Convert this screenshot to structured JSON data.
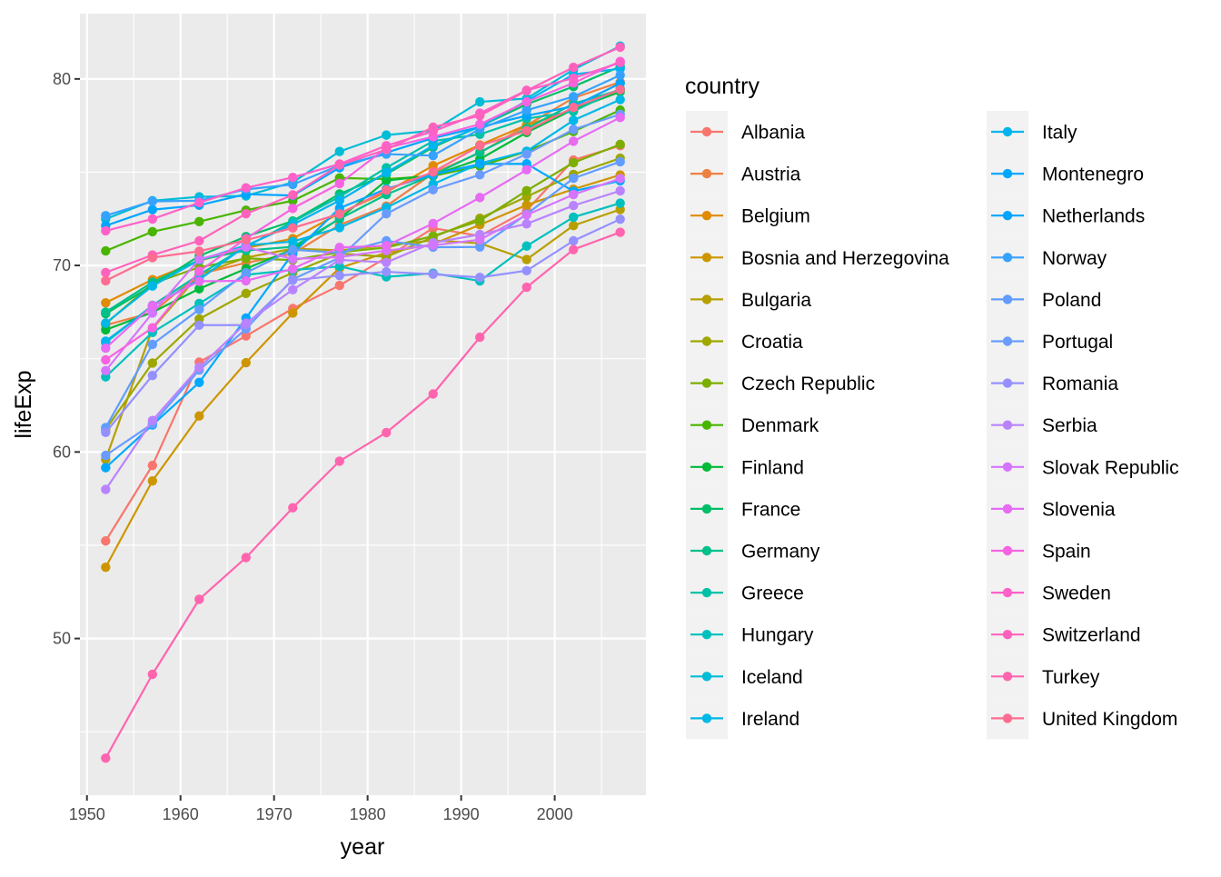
{
  "chart_data": {
    "type": "line",
    "xlabel": "year",
    "ylabel": "lifeExp",
    "xlim": [
      1949.25,
      2009.75
    ],
    "ylim": [
      41.6,
      83.5
    ],
    "x_ticks": [
      1950,
      1960,
      1970,
      1980,
      1990,
      2000
    ],
    "y_ticks": [
      50,
      60,
      70,
      80
    ],
    "grid": true,
    "legend_title": "country",
    "legend_position": "right",
    "x": [
      1952,
      1957,
      1962,
      1967,
      1972,
      1977,
      1982,
      1987,
      1992,
      1997,
      2002,
      2007
    ],
    "series": [
      {
        "name": "Albania",
        "color": "#F8766D",
        "values": [
          55.23,
          59.28,
          64.82,
          66.22,
          67.69,
          68.93,
          70.42,
          72.0,
          71.58,
          72.95,
          75.65,
          76.42
        ]
      },
      {
        "name": "Austria",
        "color": "#EE8043",
        "values": [
          66.8,
          67.48,
          69.54,
          70.14,
          70.63,
          72.17,
          73.18,
          74.94,
          76.04,
          77.51,
          78.98,
          79.83
        ]
      },
      {
        "name": "Belgium",
        "color": "#E08B00",
        "values": [
          68.0,
          69.24,
          70.25,
          70.94,
          71.44,
          72.8,
          73.93,
          75.35,
          76.46,
          77.53,
          78.32,
          79.44
        ]
      },
      {
        "name": "Bosnia and Herzegovina",
        "color": "#CD9600",
        "values": [
          53.82,
          58.45,
          61.93,
          64.79,
          67.45,
          69.86,
          70.69,
          71.14,
          72.18,
          73.24,
          74.09,
          74.85
        ]
      },
      {
        "name": "Bulgaria",
        "color": "#B79F00",
        "values": [
          59.6,
          66.61,
          69.51,
          70.42,
          70.9,
          70.81,
          71.08,
          71.34,
          71.19,
          70.32,
          72.14,
          73.0
        ]
      },
      {
        "name": "Croatia",
        "color": "#9DA700",
        "values": [
          61.21,
          64.77,
          67.13,
          68.5,
          69.61,
          70.64,
          70.46,
          71.52,
          72.53,
          73.68,
          74.88,
          75.75
        ]
      },
      {
        "name": "Czech Republic",
        "color": "#7CAE00",
        "values": [
          66.87,
          69.03,
          69.9,
          70.38,
          70.29,
          70.71,
          70.96,
          71.58,
          72.4,
          74.01,
          75.51,
          76.49
        ]
      },
      {
        "name": "Denmark",
        "color": "#49B500",
        "values": [
          70.78,
          71.81,
          72.35,
          72.96,
          73.47,
          74.69,
          74.63,
          74.8,
          75.33,
          76.11,
          77.18,
          78.33
        ]
      },
      {
        "name": "Finland",
        "color": "#00BA38",
        "values": [
          66.55,
          67.49,
          68.75,
          69.83,
          70.87,
          72.52,
          74.55,
          74.83,
          75.7,
          77.13,
          78.37,
          79.31
        ]
      },
      {
        "name": "France",
        "color": "#00BE67",
        "values": [
          67.41,
          68.93,
          70.51,
          71.55,
          72.38,
          73.83,
          74.89,
          76.34,
          77.46,
          78.64,
          79.59,
          80.66
        ]
      },
      {
        "name": "Germany",
        "color": "#00C08B",
        "values": [
          67.5,
          69.1,
          70.3,
          70.8,
          71.0,
          72.5,
          73.8,
          74.85,
          76.07,
          77.34,
          78.67,
          79.41
        ]
      },
      {
        "name": "Greece",
        "color": "#00C1A7",
        "values": [
          65.86,
          67.86,
          69.51,
          71.0,
          72.34,
          73.68,
          75.24,
          76.67,
          77.03,
          77.87,
          78.26,
          79.48
        ]
      },
      {
        "name": "Hungary",
        "color": "#00C0BE",
        "values": [
          64.03,
          66.41,
          67.96,
          69.5,
          69.76,
          69.95,
          69.39,
          69.58,
          69.17,
          71.04,
          72.59,
          73.34
        ]
      },
      {
        "name": "Iceland",
        "color": "#00BCD6",
        "values": [
          72.49,
          73.47,
          73.68,
          73.73,
          74.46,
          76.11,
          76.99,
          77.23,
          78.77,
          78.95,
          80.5,
          81.76
        ]
      },
      {
        "name": "Ireland",
        "color": "#00B8E7",
        "values": [
          66.91,
          68.9,
          70.29,
          71.08,
          71.28,
          72.03,
          73.1,
          74.36,
          75.47,
          76.12,
          77.78,
          78.89
        ]
      },
      {
        "name": "Italy",
        "color": "#00B4EF",
        "values": [
          65.94,
          67.81,
          69.24,
          71.06,
          72.19,
          73.48,
          74.98,
          76.42,
          77.44,
          78.82,
          80.24,
          80.55
        ]
      },
      {
        "name": "Montenegro",
        "color": "#00A9FF",
        "values": [
          59.16,
          61.45,
          63.73,
          67.18,
          70.64,
          73.07,
          74.1,
          74.87,
          75.44,
          75.45,
          73.98,
          74.54
        ]
      },
      {
        "name": "Netherlands",
        "color": "#00A5FF",
        "values": [
          72.13,
          72.99,
          73.23,
          73.82,
          73.75,
          75.24,
          76.05,
          76.83,
          77.42,
          78.03,
          78.53,
          79.76
        ]
      },
      {
        "name": "Norway",
        "color": "#35A2FF",
        "values": [
          72.67,
          73.44,
          73.47,
          74.08,
          74.34,
          75.37,
          75.97,
          75.89,
          77.32,
          78.32,
          79.05,
          80.2
        ]
      },
      {
        "name": "Poland",
        "color": "#619CFF",
        "values": [
          61.31,
          65.77,
          67.64,
          69.61,
          70.85,
          70.67,
          71.32,
          70.98,
          70.99,
          72.75,
          74.67,
          75.56
        ]
      },
      {
        "name": "Portugal",
        "color": "#6A9CFF",
        "values": [
          59.82,
          61.51,
          64.39,
          66.6,
          69.26,
          70.41,
          72.77,
          74.06,
          74.86,
          75.97,
          77.29,
          78.1
        ]
      },
      {
        "name": "Romania",
        "color": "#9590FF",
        "values": [
          61.05,
          64.1,
          66.8,
          66.8,
          69.21,
          69.46,
          69.66,
          69.53,
          69.36,
          69.72,
          71.32,
          72.48
        ]
      },
      {
        "name": "Serbia",
        "color": "#B983FF",
        "values": [
          57.99,
          61.69,
          64.53,
          66.91,
          68.7,
          70.3,
          70.16,
          71.22,
          71.66,
          72.23,
          73.21,
          74.0
        ]
      },
      {
        "name": "Slovak Republic",
        "color": "#D575FE",
        "values": [
          64.36,
          67.45,
          70.33,
          70.98,
          70.35,
          70.45,
          70.8,
          71.08,
          71.38,
          72.71,
          73.8,
          74.66
        ]
      },
      {
        "name": "Slovenia",
        "color": "#E76BF3",
        "values": [
          65.57,
          67.85,
          69.15,
          69.18,
          69.82,
          70.97,
          71.06,
          72.25,
          73.64,
          75.13,
          76.66,
          77.93
        ]
      },
      {
        "name": "Spain",
        "color": "#F763E0",
        "values": [
          64.94,
          66.66,
          69.69,
          71.44,
          73.06,
          74.39,
          76.3,
          76.9,
          77.57,
          78.77,
          79.78,
          80.94
        ]
      },
      {
        "name": "Sweden",
        "color": "#FF61C9",
        "values": [
          71.86,
          72.49,
          73.37,
          74.16,
          74.72,
          75.44,
          76.42,
          77.19,
          78.16,
          79.39,
          80.04,
          80.88
        ]
      },
      {
        "name": "Switzerland",
        "color": "#FF62BC",
        "values": [
          69.62,
          70.56,
          71.32,
          72.77,
          73.78,
          75.39,
          76.21,
          77.41,
          78.03,
          79.37,
          80.62,
          81.7
        ]
      },
      {
        "name": "Turkey",
        "color": "#FF65AE",
        "values": [
          43.59,
          48.08,
          52.1,
          54.34,
          57.01,
          59.51,
          61.04,
          63.11,
          66.15,
          68.83,
          70.85,
          71.78
        ]
      },
      {
        "name": "United Kingdom",
        "color": "#FF6C91",
        "values": [
          69.18,
          70.42,
          70.76,
          71.36,
          72.01,
          72.76,
          74.04,
          75.01,
          76.42,
          77.22,
          78.47,
          79.43
        ]
      }
    ]
  }
}
